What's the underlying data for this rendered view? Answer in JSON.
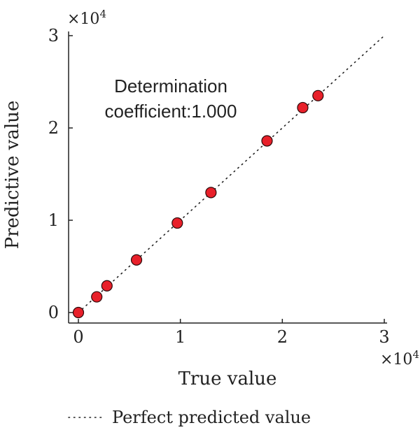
{
  "chart_data": {
    "type": "scatter",
    "xlabel": "True value",
    "ylabel": "Predictive value",
    "xlim": [
      0,
      30000
    ],
    "ylim": [
      0,
      30000
    ],
    "x_ticks": [
      "0",
      "1",
      "2",
      "3"
    ],
    "y_ticks": [
      "0",
      "1",
      "2",
      "3"
    ],
    "x_multiplier": {
      "base": "×10",
      "exp": "4"
    },
    "y_multiplier": {
      "base": "×10",
      "exp": "4"
    },
    "annotation_line1": "Determination",
    "annotation_line2": "coefficient:1.000",
    "reference_line": {
      "name": "Perfect predicted value",
      "x": [
        0,
        30000
      ],
      "y": [
        0,
        30000
      ],
      "style": "dotted"
    },
    "series": [
      {
        "points": [
          {
            "x": 0,
            "y": 0
          },
          {
            "x": 1800,
            "y": 1700
          },
          {
            "x": 2800,
            "y": 2900
          },
          {
            "x": 5700,
            "y": 5700
          },
          {
            "x": 9700,
            "y": 9700
          },
          {
            "x": 13000,
            "y": 13000
          },
          {
            "x": 18500,
            "y": 18600
          },
          {
            "x": 22000,
            "y": 22200
          },
          {
            "x": 23500,
            "y": 23500
          }
        ]
      }
    ],
    "colors": {
      "marker_fill": "#e8202a",
      "marker_stroke": "#2a0a0a",
      "axis": "#222222"
    },
    "grid": false,
    "legend_position": "bottom"
  }
}
